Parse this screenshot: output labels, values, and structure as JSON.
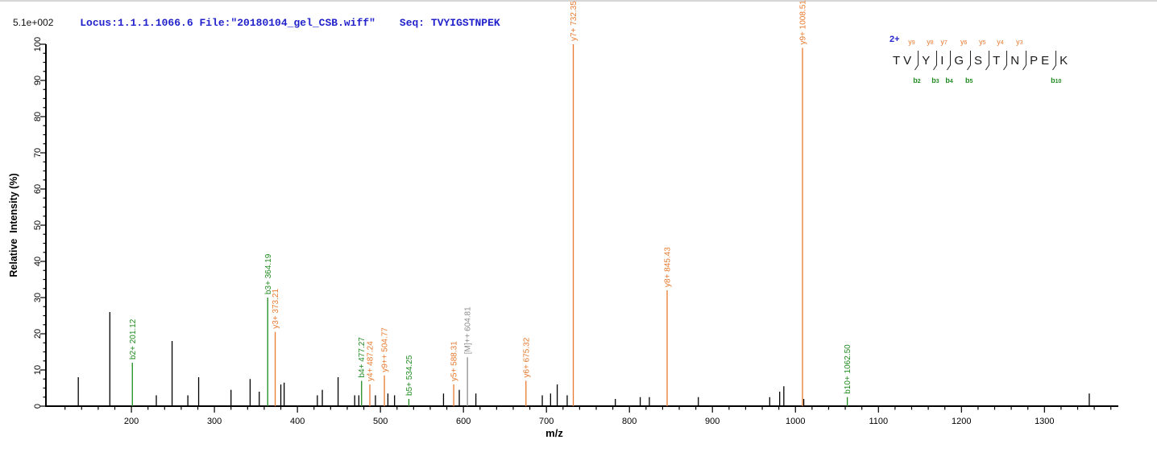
{
  "header": {
    "locus_text": "Locus:1.1.1.1066.6 File:\"20180104_gel_CSB.wiff\"",
    "seq_text": "Seq: TVYIGSTNPEK",
    "max_intensity": "5.1e+002"
  },
  "colors": {
    "y_ion": "#E8792E",
    "b_ion": "#1F8A1F",
    "precursor_ion": "#8C8C8C",
    "peak_black": "#000000",
    "header_text": "#2222CC",
    "axis": "#000000"
  },
  "chart_data": {
    "type": "bar",
    "subtype": "ms2-stick-spectrum",
    "title": "",
    "xlabel": "m/z",
    "ylabel": "Relative  Intensity (%)",
    "y_axis_max_label": "5.1e+002",
    "xlim": [
      97,
      1389
    ],
    "ylim": [
      0,
      100
    ],
    "x_major_ticks": [
      200,
      300,
      400,
      500,
      600,
      700,
      800,
      900,
      1000,
      1100,
      1200,
      1300
    ],
    "x_minor_tick_step": 20,
    "y_major_ticks": [
      0,
      10,
      20,
      30,
      40,
      50,
      60,
      70,
      80,
      90,
      100
    ],
    "y_minor_tick_step": 2.5,
    "grid": false,
    "legend": false,
    "labeled_peaks": [
      {
        "label": "b2+ 201.12",
        "mz": 201.12,
        "intensity": 12,
        "series": "b"
      },
      {
        "label": "b3+ 364.19",
        "mz": 364.19,
        "intensity": 30,
        "series": "b"
      },
      {
        "label": "y3+ 373.21",
        "mz": 373.21,
        "intensity": 20.5,
        "series": "y"
      },
      {
        "label": "b4+ 477.27",
        "mz": 477.27,
        "intensity": 7,
        "series": "b"
      },
      {
        "label": "y4+ 487.24",
        "mz": 487.24,
        "intensity": 6,
        "series": "y"
      },
      {
        "label": "y9++ 504.77",
        "mz": 504.77,
        "intensity": 8.5,
        "series": "y"
      },
      {
        "label": "b5+ 534.25",
        "mz": 534.25,
        "intensity": 2,
        "series": "b"
      },
      {
        "label": "y5+ 588.31",
        "mz": 588.31,
        "intensity": 6,
        "series": "y"
      },
      {
        "label": "[M]++ 604.81",
        "mz": 604.81,
        "intensity": 13.5,
        "series": "precursor"
      },
      {
        "label": "y6+ 675.32",
        "mz": 675.32,
        "intensity": 7,
        "series": "y"
      },
      {
        "label": "y7+ 732.35",
        "mz": 732.35,
        "intensity": 100,
        "series": "y"
      },
      {
        "label": "y8+ 845.43",
        "mz": 845.43,
        "intensity": 32,
        "series": "y"
      },
      {
        "label": "y9+ 1008.51",
        "mz": 1008.51,
        "intensity": 99,
        "series": "y"
      },
      {
        "label": "b10+ 1062.50",
        "mz": 1062.5,
        "intensity": 2.5,
        "series": "b"
      }
    ],
    "unlabeled_peaks": [
      [
        136,
        8
      ],
      [
        174,
        26
      ],
      [
        230,
        3
      ],
      [
        249,
        18
      ],
      [
        268,
        3
      ],
      [
        281,
        8
      ],
      [
        320,
        4.5
      ],
      [
        343,
        7.5
      ],
      [
        354,
        4
      ],
      [
        380,
        6
      ],
      [
        384,
        6.5
      ],
      [
        424,
        3
      ],
      [
        430,
        4.5
      ],
      [
        449,
        8
      ],
      [
        469,
        3
      ],
      [
        474,
        3
      ],
      [
        494,
        3
      ],
      [
        509,
        3.5
      ],
      [
        517,
        3
      ],
      [
        576,
        3.5
      ],
      [
        595,
        4.5
      ],
      [
        615,
        3.5
      ],
      [
        695,
        3
      ],
      [
        705,
        3.5
      ],
      [
        713,
        6
      ],
      [
        725,
        3
      ],
      [
        783,
        2
      ],
      [
        813,
        2.5
      ],
      [
        824,
        2.5
      ],
      [
        883,
        2.5
      ],
      [
        969,
        2.5
      ],
      [
        981,
        4
      ],
      [
        986,
        5.5
      ],
      [
        1010,
        2
      ],
      [
        1354,
        3.5
      ]
    ]
  },
  "sequence_annotation": {
    "charge_label": "2+",
    "residues": [
      "T",
      "V",
      "Y",
      "I",
      "G",
      "S",
      "T",
      "N",
      "P",
      "E",
      "K"
    ],
    "cleavages": [
      {
        "after_residue": 2,
        "y_ion": "y9",
        "b_ion": "b2"
      },
      {
        "after_residue": 3,
        "y_ion": "y8",
        "b_ion": "b3"
      },
      {
        "after_residue": 4,
        "y_ion": "y7",
        "b_ion": "b4"
      },
      {
        "after_residue": 5,
        "y_ion": "y6",
        "b_ion": "b5"
      },
      {
        "after_residue": 6,
        "y_ion": "y5",
        "b_ion": null
      },
      {
        "after_residue": 7,
        "y_ion": "y4",
        "b_ion": null
      },
      {
        "after_residue": 8,
        "y_ion": "y3",
        "b_ion": null
      },
      {
        "after_residue": 10,
        "y_ion": null,
        "b_ion": "b10"
      }
    ]
  }
}
